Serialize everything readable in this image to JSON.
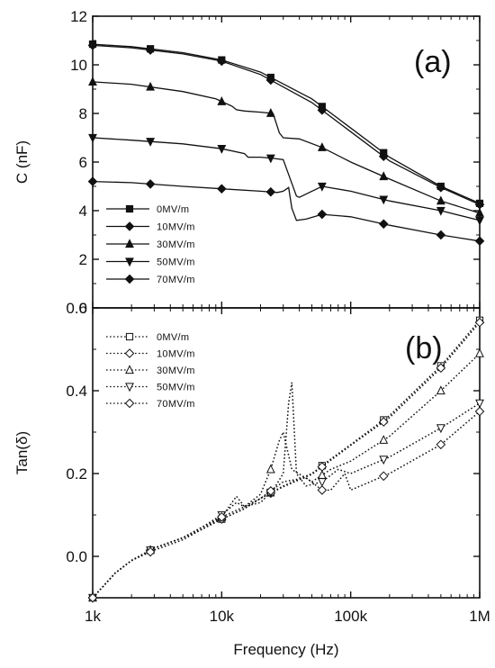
{
  "chart_data": [
    {
      "type": "line",
      "panel_label": "(a)",
      "xlabel": "",
      "ylabel": "C (nF)",
      "x_scale": "log",
      "xlim": [
        1000,
        1000000
      ],
      "ylim": [
        0,
        12
      ],
      "x_ticks": [
        1000,
        10000,
        100000,
        1000000
      ],
      "x_tick_labels": [
        "1k",
        "10k",
        "100k",
        "1M"
      ],
      "y_ticks": [
        0,
        2,
        4,
        6,
        8,
        10,
        12
      ],
      "y_tick_labels": [
        "0",
        "2",
        "4",
        "6",
        "8",
        "10",
        "12"
      ],
      "legend_position": "bottom-left",
      "line_style": "solid",
      "series": [
        {
          "name": "0MV/m",
          "marker": "square-filled",
          "x": [
            1000,
            2000,
            5000,
            10000,
            20000,
            50000,
            100000,
            200000,
            500000,
            1000000
          ],
          "y": [
            10.85,
            10.75,
            10.5,
            10.2,
            9.7,
            8.6,
            7.4,
            6.2,
            5.0,
            4.3
          ],
          "markers_x": [
            1000,
            2800,
            10000,
            24000,
            60000,
            180000,
            500000,
            1000000
          ]
        },
        {
          "name": "10MV/m",
          "marker": "diamond-filled",
          "x": [
            1000,
            2000,
            5000,
            10000,
            20000,
            50000,
            100000,
            200000,
            500000,
            1000000
          ],
          "y": [
            10.8,
            10.7,
            10.45,
            10.15,
            9.6,
            8.45,
            7.25,
            6.05,
            4.95,
            4.25
          ],
          "markers_x": [
            1000,
            2800,
            10000,
            24000,
            60000,
            180000,
            500000,
            1000000
          ]
        },
        {
          "name": "30MV/m",
          "marker": "triangle-up-filled",
          "x": [
            1000,
            2000,
            5000,
            9000,
            12000,
            13000,
            15000,
            20000,
            25000,
            28000,
            30000,
            40000,
            60000,
            100000,
            200000,
            500000,
            1000000
          ],
          "y": [
            9.3,
            9.2,
            8.9,
            8.6,
            8.3,
            8.15,
            8.1,
            8.05,
            8.0,
            7.2,
            7.0,
            6.95,
            6.6,
            6.0,
            5.3,
            4.4,
            3.9
          ],
          "markers_x": [
            1000,
            2800,
            10000,
            24000,
            60000,
            180000,
            500000,
            1000000
          ]
        },
        {
          "name": "50MV/m",
          "marker": "triangle-down-filled",
          "x": [
            1000,
            2000,
            5000,
            10000,
            15000,
            16000,
            20000,
            25000,
            30000,
            38000,
            40000,
            50000,
            60000,
            100000,
            200000,
            500000,
            1000000
          ],
          "y": [
            7.0,
            6.9,
            6.75,
            6.55,
            6.35,
            6.2,
            6.2,
            6.15,
            6.1,
            4.6,
            4.55,
            4.8,
            5.0,
            4.8,
            4.4,
            4.0,
            3.6
          ],
          "markers_x": [
            1000,
            2800,
            10000,
            24000,
            60000,
            180000,
            500000,
            1000000
          ]
        },
        {
          "name": "70MV/m",
          "marker": "diamond-plus-filled",
          "x": [
            1000,
            2000,
            5000,
            10000,
            20000,
            27000,
            30000,
            33000,
            35000,
            38000,
            45000,
            60000,
            100000,
            200000,
            500000,
            1000000
          ],
          "y": [
            5.2,
            5.15,
            5.0,
            4.9,
            4.8,
            4.75,
            4.8,
            4.95,
            4.1,
            3.6,
            3.65,
            3.85,
            3.75,
            3.4,
            3.0,
            2.75
          ],
          "markers_x": [
            1000,
            2800,
            10000,
            24000,
            60000,
            180000,
            500000,
            1000000
          ]
        }
      ]
    },
    {
      "type": "line",
      "panel_label": "(b)",
      "xlabel": "Frequency (Hz)",
      "ylabel": "Tan(δ)",
      "x_scale": "log",
      "xlim": [
        1000,
        1000000
      ],
      "ylim": [
        -0.1,
        0.6
      ],
      "x_ticks": [
        1000,
        10000,
        100000,
        1000000
      ],
      "x_tick_labels": [
        "1k",
        "10k",
        "100k",
        "1M"
      ],
      "y_ticks": [
        0.0,
        0.2,
        0.4,
        0.6
      ],
      "y_tick_labels": [
        "0.0",
        "0.2",
        "0.4",
        "0.6"
      ],
      "legend_position": "top-left",
      "line_style": "dotted",
      "series": [
        {
          "name": "0MV/m",
          "marker": "square-open",
          "x": [
            1000,
            1500,
            2000,
            3000,
            5000,
            7000,
            10000,
            15000,
            20000,
            30000,
            50000,
            70000,
            100000,
            200000,
            500000,
            1000000
          ],
          "y": [
            -0.1,
            -0.04,
            -0.01,
            0.02,
            0.045,
            0.065,
            0.09,
            0.115,
            0.14,
            0.17,
            0.2,
            0.235,
            0.27,
            0.34,
            0.46,
            0.57
          ],
          "markers_x": [
            1000,
            2800,
            10000,
            24000,
            60000,
            180000,
            500000,
            1000000
          ]
        },
        {
          "name": "10MV/m",
          "marker": "diamond-open",
          "x": [
            1000,
            1500,
            2000,
            3000,
            5000,
            7000,
            10000,
            15000,
            20000,
            30000,
            50000,
            70000,
            100000,
            200000,
            500000,
            1000000
          ],
          "y": [
            -0.1,
            -0.04,
            -0.01,
            0.02,
            0.045,
            0.065,
            0.09,
            0.115,
            0.14,
            0.168,
            0.198,
            0.232,
            0.268,
            0.335,
            0.455,
            0.565
          ],
          "markers_x": [
            1000,
            2800,
            10000,
            24000,
            60000,
            180000,
            500000,
            1000000
          ]
        },
        {
          "name": "30MV/m",
          "marker": "triangle-up-open",
          "x": [
            1000,
            1500,
            2000,
            3000,
            5000,
            7000,
            10000,
            15000,
            20000,
            24000,
            28000,
            30000,
            35000,
            50000,
            70000,
            100000,
            200000,
            500000,
            1000000
          ],
          "y": [
            -0.1,
            -0.04,
            -0.01,
            0.02,
            0.045,
            0.07,
            0.095,
            0.12,
            0.15,
            0.21,
            0.28,
            0.3,
            0.21,
            0.18,
            0.21,
            0.23,
            0.29,
            0.4,
            0.49
          ],
          "markers_x": [
            1000,
            2800,
            10000,
            24000,
            60000,
            180000,
            500000,
            1000000
          ]
        },
        {
          "name": "50MV/m",
          "marker": "triangle-down-open",
          "x": [
            1000,
            1500,
            2000,
            3000,
            5000,
            7000,
            10000,
            13000,
            15000,
            20000,
            25000,
            30000,
            33000,
            35000,
            38000,
            45000,
            60000,
            80000,
            100000,
            200000,
            500000,
            1000000
          ],
          "y": [
            -0.1,
            -0.04,
            -0.01,
            0.02,
            0.045,
            0.07,
            0.1,
            0.13,
            0.12,
            0.13,
            0.16,
            0.2,
            0.37,
            0.42,
            0.2,
            0.17,
            0.18,
            0.21,
            0.2,
            0.24,
            0.31,
            0.37
          ],
          "markers_x": [
            1000,
            2800,
            10000,
            24000,
            60000,
            180000,
            500000,
            1000000
          ]
        },
        {
          "name": "70MV/m",
          "marker": "diamond-cross-open",
          "x": [
            1000,
            1500,
            2000,
            3000,
            5000,
            7000,
            10000,
            13000,
            15000,
            20000,
            30000,
            45000,
            60000,
            70000,
            90000,
            100000,
            200000,
            500000,
            1000000
          ],
          "y": [
            -0.1,
            -0.04,
            -0.01,
            0.015,
            0.04,
            0.065,
            0.095,
            0.145,
            0.12,
            0.14,
            0.18,
            0.19,
            0.16,
            0.16,
            0.2,
            0.16,
            0.2,
            0.27,
            0.35
          ],
          "markers_x": [
            1000,
            2800,
            10000,
            24000,
            60000,
            180000,
            500000,
            1000000
          ]
        }
      ]
    }
  ]
}
